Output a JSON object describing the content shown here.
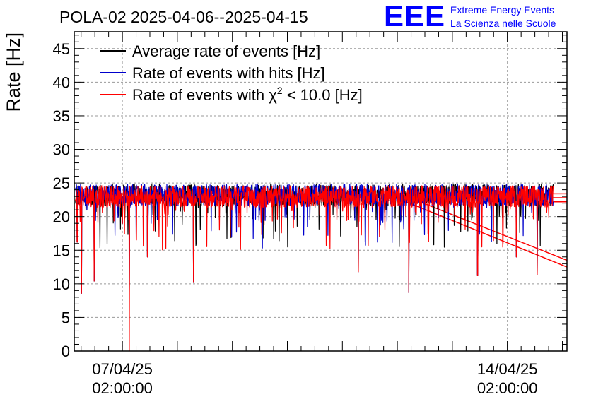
{
  "chart_data": {
    "type": "line",
    "title": "POLA-02 2025-04-06--2025-04-15",
    "ylabel": "Rate [Hz]",
    "xlabel": "",
    "ylim": [
      0,
      47.5
    ],
    "xlim": [
      "2025-04-06 05:00",
      "2025-04-15 04:00"
    ],
    "grid": true,
    "legend_position": "top-left",
    "y_ticks": [
      "0",
      "5",
      "10",
      "15",
      "20",
      "25",
      "30",
      "35",
      "40",
      "45"
    ],
    "x_ticks": [
      {
        "date": "07/04/25",
        "time": "02:00:00",
        "x": "2025-04-07 02:00"
      },
      {
        "date": "14/04/25",
        "time": "02:00:00",
        "x": "2025-04-14 02:00"
      }
    ],
    "legend": {
      "avg": "Average rate of events [Hz]",
      "hits": "Rate of events with hits [Hz]",
      "chi_prefix": "Rate of events with ",
      "chi_symbol": "χ",
      "chi_sup": "2",
      "chi_suffix": " < 10.0 [Hz]"
    },
    "series": [
      {
        "key": "avg",
        "color": "#000000",
        "typical_value": 23.2,
        "values_range": [
          8.5,
          25.8
        ]
      },
      {
        "key": "hits",
        "color": "#0000cc",
        "typical_value": 23.2,
        "values_range": [
          8.5,
          25.8
        ]
      },
      {
        "key": "chi",
        "color": "#ff0000",
        "typical_value": 23.0,
        "values_range": [
          0,
          25.8
        ]
      }
    ],
    "data_window": {
      "start": "2025-04-06 05:30",
      "end": "2025-04-14 22:00"
    },
    "notable_dips": [
      {
        "x": "2025-04-06 06:20",
        "y": 16.2
      },
      {
        "x": "2025-04-06 08:10",
        "y": 8.6
      },
      {
        "x": "2025-04-06 13:40",
        "y": 10.4
      },
      {
        "x": "2025-04-07 02:00",
        "y": 19.0
      },
      {
        "x": "2025-04-07 05:00",
        "y": 0.0
      },
      {
        "x": "2025-04-07 13:00",
        "y": 14.0
      },
      {
        "x": "2025-04-08 09:00",
        "y": 10.3
      },
      {
        "x": "2025-04-11 09:00",
        "y": 11.8
      },
      {
        "x": "2025-04-12 07:00",
        "y": 8.7
      },
      {
        "x": "2025-04-13 13:00",
        "y": 11.2
      },
      {
        "x": "2025-04-14 06:00",
        "y": 14.0
      },
      {
        "x": "2025-04-14 15:00",
        "y": 11.4
      }
    ],
    "tail_lines": [
      {
        "color": "#ff0000",
        "from": [
          "2025-04-12 00:00",
          23.0
        ],
        "to": [
          "2025-04-15 04:00",
          12.5
        ]
      },
      {
        "color": "#ff0000",
        "from": [
          "2025-04-12 06:00",
          23.0
        ],
        "to": [
          "2025-04-15 04:00",
          13.5
        ]
      },
      {
        "color": "#ff0000",
        "from": [
          "2025-04-14 22:00",
          22.2
        ],
        "to": [
          "2025-04-15 04:00",
          22.2
        ]
      },
      {
        "color": "#ff0000",
        "from": [
          "2025-04-14 22:00",
          22.8
        ],
        "to": [
          "2025-04-15 04:00",
          22.8
        ]
      },
      {
        "color": "#ff0000",
        "from": [
          "2025-04-14 22:00",
          23.4
        ],
        "to": [
          "2025-04-15 04:00",
          23.4
        ]
      }
    ]
  },
  "logo": {
    "mark": "EEE",
    "line1": "Extreme Energy Events",
    "line2": "La Scienza nelle Scuole",
    "color": "#0000ff"
  }
}
